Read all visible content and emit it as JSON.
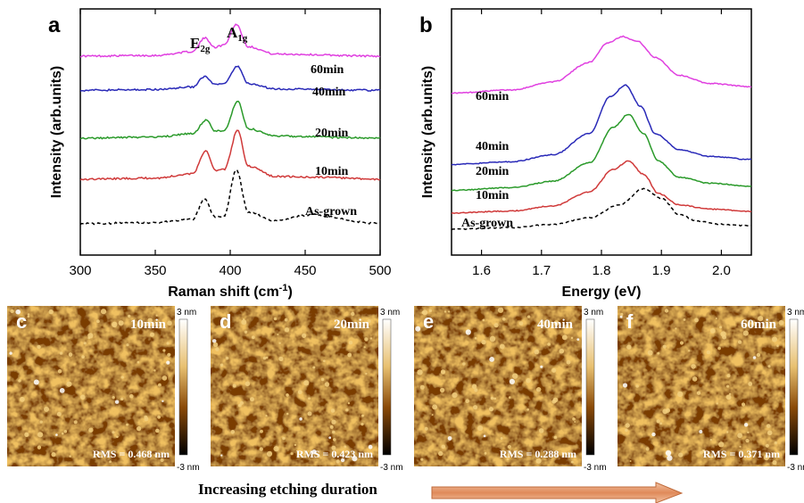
{
  "panel_a": {
    "letter": "a"
  },
  "panel_b": {
    "letter": "b"
  },
  "chart_data": [
    {
      "type": "line",
      "panel": "a",
      "xlabel": "Raman shift (cm-1)",
      "ylabel": "Intensity (arb.units)",
      "xlim": [
        300,
        500
      ],
      "xticks": [
        "300",
        "350",
        "400",
        "450",
        "500"
      ],
      "peak_labels": [
        "E2g",
        "A1g"
      ],
      "series": [
        {
          "name": "60min",
          "color": "#e040e0",
          "dashed": false,
          "offset": 4.0,
          "peaks": [
            [
              383,
              0.55
            ],
            [
              404,
              0.95
            ]
          ],
          "x": [
            300,
            350,
            375,
            383,
            390,
            396,
            404,
            412,
            430,
            500
          ],
          "y": [
            0.02,
            0.04,
            0.15,
            0.55,
            0.28,
            0.35,
            0.95,
            0.3,
            0.08,
            0.02
          ]
        },
        {
          "name": "40min",
          "color": "#2a2ab8",
          "dashed": false,
          "offset": 3.0,
          "x": [
            300,
            350,
            375,
            383,
            390,
            396,
            405,
            412,
            430,
            500
          ],
          "y": [
            0.02,
            0.04,
            0.12,
            0.42,
            0.18,
            0.22,
            0.72,
            0.22,
            0.06,
            0.02
          ]
        },
        {
          "name": "20min",
          "color": "#2a9a2a",
          "dashed": false,
          "offset": 1.6,
          "x": [
            300,
            350,
            375,
            384,
            390,
            396,
            405,
            412,
            430,
            500
          ],
          "y": [
            0.02,
            0.05,
            0.15,
            0.55,
            0.22,
            0.25,
            1.1,
            0.3,
            0.08,
            0.02
          ]
        },
        {
          "name": "10min",
          "color": "#d03a3a",
          "dashed": false,
          "offset": 0.4,
          "x": [
            300,
            350,
            375,
            384,
            390,
            396,
            405,
            412,
            430,
            455,
            500
          ],
          "y": [
            0.02,
            0.05,
            0.18,
            0.85,
            0.28,
            0.3,
            1.45,
            0.4,
            0.1,
            0.08,
            0.02
          ]
        },
        {
          "name": "As-grown",
          "color": "#000000",
          "dashed": true,
          "offset": -0.9,
          "x": [
            300,
            350,
            375,
            383,
            390,
            396,
            404,
            412,
            430,
            453,
            500
          ],
          "y": [
            0.02,
            0.05,
            0.15,
            0.75,
            0.2,
            0.25,
            1.6,
            0.35,
            0.1,
            0.28,
            0.02
          ]
        }
      ]
    },
    {
      "type": "line",
      "panel": "b",
      "xlabel": "Energy (eV)",
      "ylabel": "Intensity (arb.units)",
      "xlim": [
        1.55,
        2.05
      ],
      "xticks": [
        "1.6",
        "1.7",
        "1.8",
        "1.9",
        "2.0"
      ],
      "series": [
        {
          "name": "60min",
          "color": "#e040e0",
          "dashed": false,
          "offset": 4.2,
          "x": [
            1.55,
            1.65,
            1.72,
            1.78,
            1.81,
            1.835,
            1.86,
            1.89,
            1.93,
            1.98,
            2.05
          ],
          "y": [
            0.0,
            0.1,
            0.35,
            0.95,
            1.55,
            1.75,
            1.6,
            1.1,
            0.55,
            0.3,
            0.2
          ]
        },
        {
          "name": "40min",
          "color": "#2a2ab8",
          "dashed": false,
          "offset": 2.0,
          "x": [
            1.55,
            1.65,
            1.72,
            1.78,
            1.815,
            1.84,
            1.865,
            1.89,
            1.93,
            1.98,
            2.05
          ],
          "y": [
            0.0,
            0.08,
            0.3,
            0.95,
            2.1,
            2.45,
            1.8,
            0.95,
            0.45,
            0.25,
            0.15
          ]
        },
        {
          "name": "20min",
          "color": "#2a9a2a",
          "dashed": false,
          "offset": 1.2,
          "x": [
            1.55,
            1.65,
            1.72,
            1.78,
            1.82,
            1.845,
            1.87,
            1.895,
            1.93,
            1.98,
            2.05
          ],
          "y": [
            0.0,
            0.08,
            0.28,
            0.85,
            1.95,
            2.35,
            1.75,
            0.9,
            0.4,
            0.22,
            0.12
          ]
        },
        {
          "name": "10min",
          "color": "#d03a3a",
          "dashed": false,
          "offset": 0.5,
          "x": [
            1.55,
            1.65,
            1.72,
            1.78,
            1.82,
            1.845,
            1.87,
            1.895,
            1.93,
            1.98,
            2.05
          ],
          "y": [
            0.0,
            0.06,
            0.22,
            0.65,
            1.35,
            1.6,
            1.2,
            0.6,
            0.25,
            0.12,
            0.05
          ]
        },
        {
          "name": "As-grown",
          "color": "#000000",
          "dashed": true,
          "offset": 0.0,
          "x": [
            1.55,
            1.65,
            1.72,
            1.78,
            1.83,
            1.87,
            1.9,
            1.93,
            1.96,
            2.0,
            2.05
          ],
          "y": [
            0.0,
            0.05,
            0.15,
            0.35,
            0.75,
            1.25,
            0.95,
            0.45,
            0.25,
            0.15,
            0.1
          ]
        }
      ]
    }
  ],
  "afm_panels": [
    {
      "letter": "c",
      "title": "10min",
      "rms": "RMS = 0.468 nm",
      "scale_top": "3 nm",
      "scale_bottom": "-3 nm"
    },
    {
      "letter": "d",
      "title": "20min",
      "rms": "RMS = 0.423 nm",
      "scale_top": "3 nm",
      "scale_bottom": "-3 nm"
    },
    {
      "letter": "e",
      "title": "40min",
      "rms": "RMS = 0.288 nm",
      "scale_top": "3 nm",
      "scale_bottom": "-3 nm"
    },
    {
      "letter": "f",
      "title": "60min",
      "rms": "RMS = 0.371 nm",
      "scale_top": "3 nm",
      "scale_bottom": "-3 nm"
    }
  ],
  "bottom": {
    "label": "Increasing etching duration"
  },
  "colors": {
    "arrow_fill": "#e8a27a",
    "afm_dark": "#2a1200",
    "afm_mid": "#8a4a08",
    "afm_light": "#e0b060"
  }
}
